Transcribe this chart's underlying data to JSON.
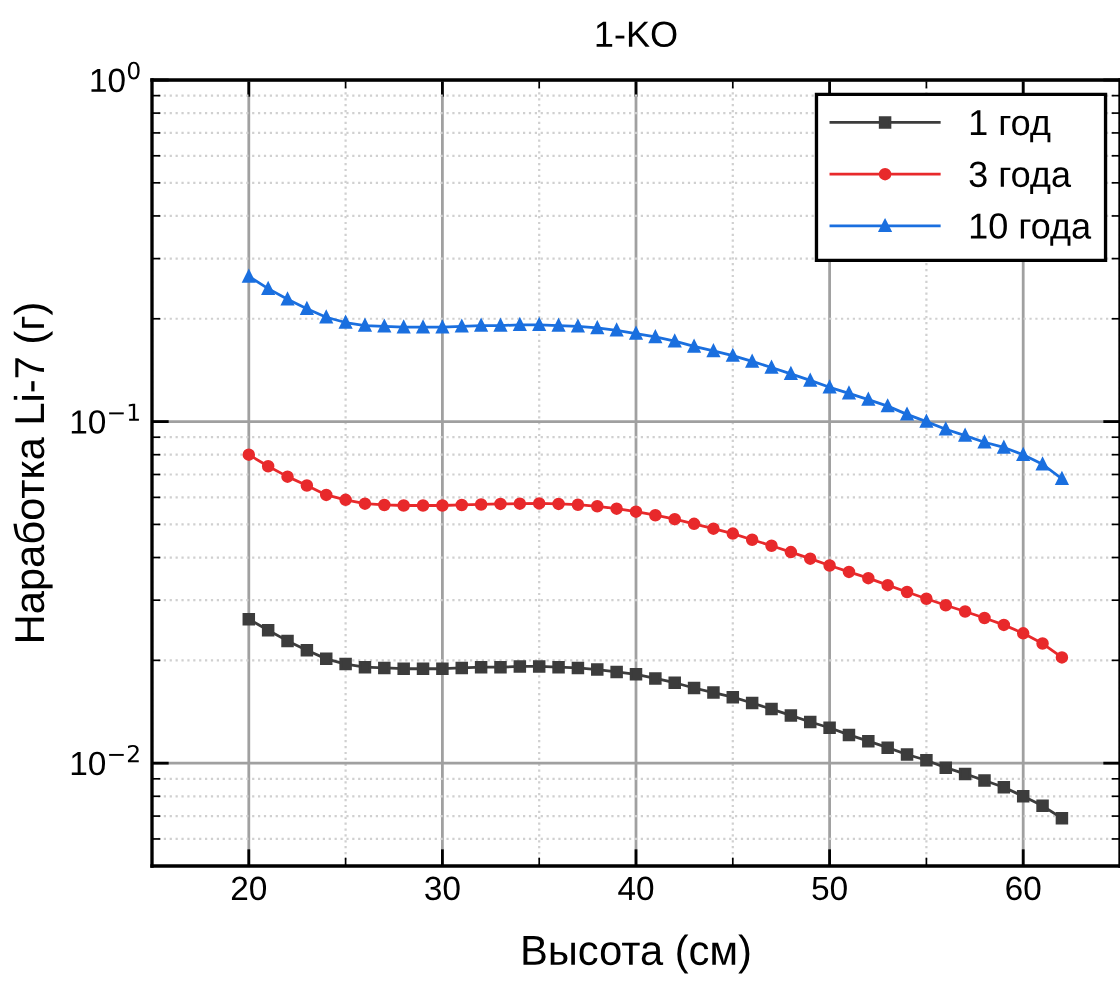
{
  "chart_data": {
    "type": "line",
    "title": "1-KO",
    "xlabel": "Высота (см)",
    "ylabel": "Наработка Li-7 (г)",
    "x": [
      20,
      21,
      22,
      23,
      24,
      25,
      26,
      27,
      28,
      29,
      30,
      31,
      32,
      33,
      34,
      35,
      36,
      37,
      38,
      39,
      40,
      41,
      42,
      43,
      44,
      45,
      46,
      47,
      48,
      49,
      50,
      51,
      52,
      53,
      54,
      55,
      56,
      57,
      58,
      59,
      60,
      61,
      62
    ],
    "series": [
      {
        "name": "1 год",
        "color": "#3c3c3c",
        "marker": "square",
        "values": [
          0.0264,
          0.0245,
          0.0228,
          0.0214,
          0.0202,
          0.0195,
          0.0191,
          0.019,
          0.0189,
          0.0189,
          0.0189,
          0.019,
          0.0191,
          0.0191,
          0.0192,
          0.0192,
          0.0191,
          0.019,
          0.0188,
          0.0185,
          0.0182,
          0.0177,
          0.0172,
          0.0166,
          0.0161,
          0.0156,
          0.015,
          0.0144,
          0.0138,
          0.0132,
          0.0127,
          0.0121,
          0.0116,
          0.0111,
          0.0106,
          0.0102,
          0.0097,
          0.0093,
          0.0089,
          0.0085,
          0.008,
          0.0075,
          0.0069
        ]
      },
      {
        "name": "3 года",
        "color": "#e8292b",
        "marker": "circle",
        "values": [
          0.08,
          0.074,
          0.069,
          0.065,
          0.061,
          0.059,
          0.0575,
          0.057,
          0.0568,
          0.0568,
          0.0568,
          0.057,
          0.0572,
          0.0574,
          0.0575,
          0.0576,
          0.0574,
          0.0571,
          0.0565,
          0.0556,
          0.0545,
          0.0532,
          0.0518,
          0.0502,
          0.0486,
          0.047,
          0.0451,
          0.0433,
          0.0415,
          0.0397,
          0.0379,
          0.0363,
          0.0348,
          0.0332,
          0.0317,
          0.0303,
          0.029,
          0.0278,
          0.0266,
          0.0254,
          0.024,
          0.0224,
          0.0204
        ]
      },
      {
        "name": "10 года",
        "color": "#1a6fdf",
        "marker": "triangle",
        "values": [
          0.266,
          0.245,
          0.228,
          0.214,
          0.202,
          0.195,
          0.191,
          0.19,
          0.189,
          0.189,
          0.189,
          0.19,
          0.191,
          0.191,
          0.192,
          0.192,
          0.191,
          0.19,
          0.188,
          0.185,
          0.181,
          0.177,
          0.172,
          0.166,
          0.161,
          0.156,
          0.15,
          0.144,
          0.138,
          0.132,
          0.126,
          0.121,
          0.116,
          0.111,
          0.105,
          0.1,
          0.095,
          0.091,
          0.087,
          0.084,
          0.08,
          0.075,
          0.068
        ]
      }
    ],
    "log": "y",
    "xlim": [
      15,
      65
    ],
    "xticks": [
      20,
      30,
      40,
      50,
      60
    ],
    "ylim": [
      0.005,
      1
    ],
    "yticks": [
      {
        "value": 0.01,
        "label": "10$^{−2}$"
      },
      {
        "value": 0.1,
        "label": "10$^{−1}$"
      },
      {
        "value": 1,
        "label": "10$^{0}$"
      }
    ],
    "grid": true,
    "legend": "top right",
    "line_style": "solid"
  }
}
